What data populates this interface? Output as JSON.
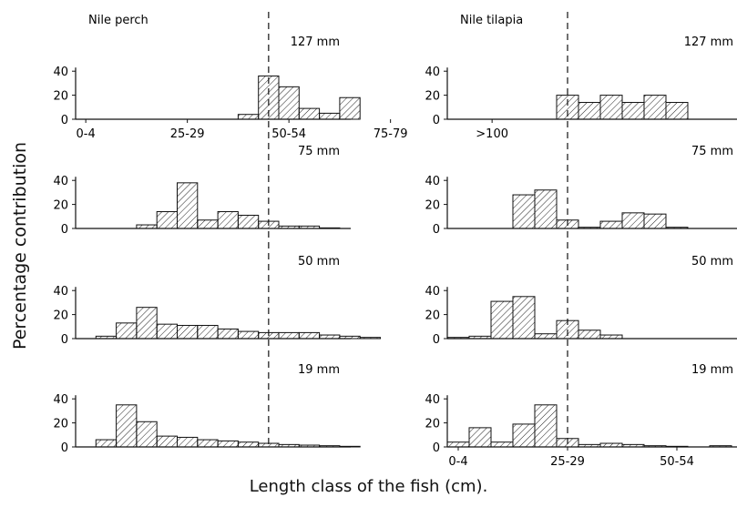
{
  "figure": {
    "ylabel": "Percentage contribution",
    "xlabel": "Length class of the fish (cm)."
  },
  "chart_data": [
    {
      "type": "bar",
      "title": "Nile perch",
      "panel": "127 mm",
      "bins_cm": [
        0,
        105
      ],
      "bin_width_cm": 5,
      "x_ticks": [
        "0-4",
        "25-29",
        "50-54",
        "75-79",
        ">100"
      ],
      "y_ticks": [
        0,
        20,
        40
      ],
      "ylim": [
        0,
        40
      ],
      "reference_line_cm": 47.5,
      "bars": [
        {
          "start": 40,
          "value": 4
        },
        {
          "start": 45,
          "value": 36
        },
        {
          "start": 50,
          "value": 27
        },
        {
          "start": 55,
          "value": 9
        },
        {
          "start": 60,
          "value": 5
        },
        {
          "start": 65,
          "value": 18
        }
      ]
    },
    {
      "type": "bar",
      "title": "",
      "panel": "75 mm",
      "bins_cm": [
        0,
        105
      ],
      "bin_width_cm": 5,
      "y_ticks": [
        0,
        20,
        40
      ],
      "ylim": [
        0,
        40
      ],
      "reference_line_cm": 47.5,
      "bars": [
        {
          "start": 15,
          "value": 3
        },
        {
          "start": 20,
          "value": 14
        },
        {
          "start": 25,
          "value": 38
        },
        {
          "start": 30,
          "value": 7
        },
        {
          "start": 35,
          "value": 14
        },
        {
          "start": 40,
          "value": 11
        },
        {
          "start": 45,
          "value": 6
        },
        {
          "start": 50,
          "value": 2
        },
        {
          "start": 55,
          "value": 2
        },
        {
          "start": 60,
          "value": 0.5
        }
      ]
    },
    {
      "type": "bar",
      "title": "",
      "panel": "50 mm",
      "bins_cm": [
        0,
        105
      ],
      "bin_width_cm": 5,
      "y_ticks": [
        0,
        20,
        40
      ],
      "ylim": [
        0,
        40
      ],
      "reference_line_cm": 47.5,
      "bars": [
        {
          "start": 5,
          "value": 2
        },
        {
          "start": 10,
          "value": 13
        },
        {
          "start": 15,
          "value": 26
        },
        {
          "start": 20,
          "value": 12
        },
        {
          "start": 25,
          "value": 11
        },
        {
          "start": 30,
          "value": 11
        },
        {
          "start": 35,
          "value": 8
        },
        {
          "start": 40,
          "value": 6
        },
        {
          "start": 45,
          "value": 5
        },
        {
          "start": 50,
          "value": 5
        },
        {
          "start": 55,
          "value": 5
        },
        {
          "start": 60,
          "value": 3
        },
        {
          "start": 65,
          "value": 2
        },
        {
          "start": 70,
          "value": 1
        }
      ]
    },
    {
      "type": "bar",
      "title": "",
      "panel": "19 mm",
      "bins_cm": [
        0,
        105
      ],
      "bin_width_cm": 5,
      "y_ticks": [
        0,
        20,
        40
      ],
      "ylim": [
        0,
        40
      ],
      "reference_line_cm": 47.5,
      "bars": [
        {
          "start": 5,
          "value": 6
        },
        {
          "start": 10,
          "value": 35
        },
        {
          "start": 15,
          "value": 21
        },
        {
          "start": 20,
          "value": 9
        },
        {
          "start": 25,
          "value": 8
        },
        {
          "start": 30,
          "value": 6
        },
        {
          "start": 35,
          "value": 5
        },
        {
          "start": 40,
          "value": 4
        },
        {
          "start": 45,
          "value": 3
        },
        {
          "start": 50,
          "value": 2
        },
        {
          "start": 55,
          "value": 1.5
        },
        {
          "start": 60,
          "value": 1
        },
        {
          "start": 65,
          "value": 0.5
        }
      ]
    },
    {
      "type": "bar",
      "title": "Nile tilapia",
      "panel": "127 mm",
      "bins_cm": [
        0,
        65
      ],
      "bin_width_cm": 5,
      "y_ticks": [
        0,
        20,
        40
      ],
      "ylim": [
        0,
        40
      ],
      "reference_line_cm": 27.5,
      "bars": [
        {
          "start": 25,
          "value": 20
        },
        {
          "start": 30,
          "value": 14
        },
        {
          "start": 35,
          "value": 20
        },
        {
          "start": 40,
          "value": 14
        },
        {
          "start": 45,
          "value": 20
        },
        {
          "start": 50,
          "value": 14
        }
      ]
    },
    {
      "type": "bar",
      "title": "",
      "panel": "75 mm",
      "bins_cm": [
        0,
        65
      ],
      "bin_width_cm": 5,
      "y_ticks": [
        0,
        20,
        40
      ],
      "ylim": [
        0,
        40
      ],
      "reference_line_cm": 27.5,
      "bars": [
        {
          "start": 15,
          "value": 28
        },
        {
          "start": 20,
          "value": 32
        },
        {
          "start": 25,
          "value": 7
        },
        {
          "start": 30,
          "value": 1
        },
        {
          "start": 35,
          "value": 6
        },
        {
          "start": 40,
          "value": 13
        },
        {
          "start": 45,
          "value": 12
        },
        {
          "start": 50,
          "value": 1
        }
      ]
    },
    {
      "type": "bar",
      "title": "",
      "panel": "50 mm",
      "bins_cm": [
        0,
        65
      ],
      "bin_width_cm": 5,
      "y_ticks": [
        0,
        20,
        40
      ],
      "ylim": [
        0,
        40
      ],
      "reference_line_cm": 27.5,
      "bars": [
        {
          "start": 0,
          "value": 1
        },
        {
          "start": 5,
          "value": 2
        },
        {
          "start": 10,
          "value": 31
        },
        {
          "start": 15,
          "value": 35
        },
        {
          "start": 20,
          "value": 4
        },
        {
          "start": 25,
          "value": 15
        },
        {
          "start": 30,
          "value": 7
        },
        {
          "start": 35,
          "value": 3
        }
      ]
    },
    {
      "type": "bar",
      "title": "",
      "panel": "19 mm",
      "bins_cm": [
        0,
        65
      ],
      "bin_width_cm": 5,
      "x_ticks": [
        "0-4",
        "25-29",
        "50-54"
      ],
      "y_ticks": [
        0,
        20,
        40
      ],
      "ylim": [
        0,
        40
      ],
      "reference_line_cm": 27.5,
      "bars": [
        {
          "start": 0,
          "value": 4
        },
        {
          "start": 5,
          "value": 16
        },
        {
          "start": 10,
          "value": 4
        },
        {
          "start": 15,
          "value": 19
        },
        {
          "start": 20,
          "value": 35
        },
        {
          "start": 25,
          "value": 7
        },
        {
          "start": 30,
          "value": 2
        },
        {
          "start": 35,
          "value": 3
        },
        {
          "start": 40,
          "value": 2
        },
        {
          "start": 45,
          "value": 1
        },
        {
          "start": 50,
          "value": 0.5
        },
        {
          "start": 60,
          "value": 1
        }
      ]
    }
  ]
}
